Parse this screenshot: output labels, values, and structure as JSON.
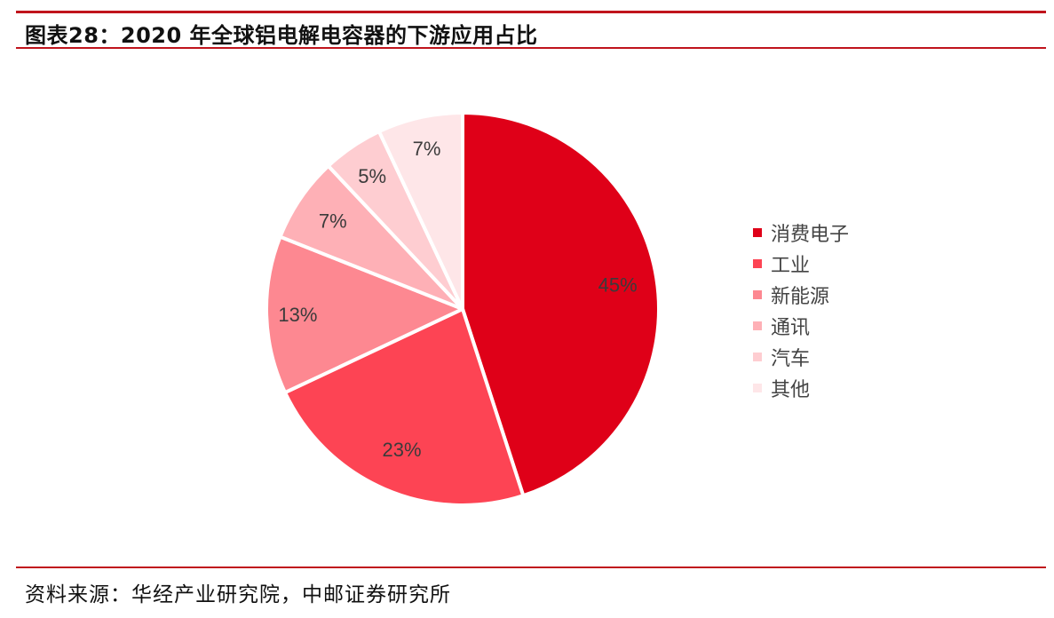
{
  "header": {
    "title": "图表28：2020 年全球铝电解电容器的下游应用占比"
  },
  "footer": {
    "source": "资料来源：华经产业研究院，中邮证券研究所"
  },
  "chart_data": {
    "type": "pie",
    "title": "2020 年全球铝电解电容器的下游应用占比",
    "categories": [
      "消费电子",
      "工业",
      "新能源",
      "通讯",
      "汽车",
      "其他"
    ],
    "values": [
      45,
      23,
      13,
      7,
      5,
      7
    ],
    "labels": [
      "45%",
      "23%",
      "13%",
      "7%",
      "5%",
      "7%"
    ],
    "colors": [
      "#df0018",
      "#fd4454",
      "#fd8891",
      "#feb0b6",
      "#fecdd1",
      "#fee6e8"
    ],
    "start_angle": "12 o'clock",
    "direction": "clockwise",
    "legend_position": "right"
  },
  "legend": {
    "items": [
      {
        "label": "消费电子",
        "color": "#df0018"
      },
      {
        "label": "工业",
        "color": "#fd4454"
      },
      {
        "label": "新能源",
        "color": "#fd8891"
      },
      {
        "label": "通讯",
        "color": "#feb0b6"
      },
      {
        "label": "汽车",
        "color": "#fecdd1"
      },
      {
        "label": "其他",
        "color": "#fee6e8"
      }
    ]
  }
}
